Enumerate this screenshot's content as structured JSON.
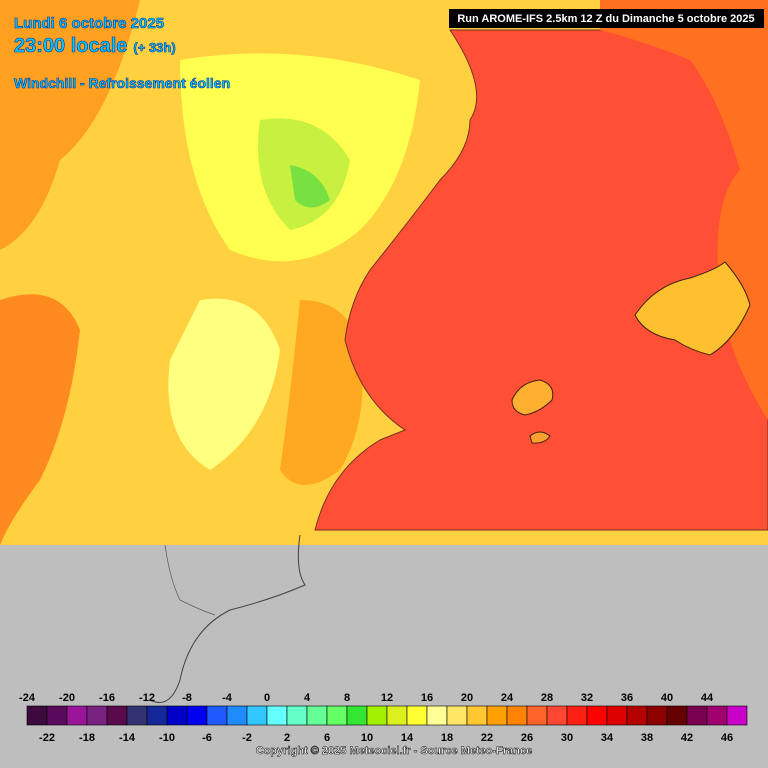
{
  "header": {
    "date": "Lundi 6 octobre 2025",
    "time": "23:00 locale",
    "offset": "(+ 33h)",
    "subtitle": "Windchill - Refroissement éolien",
    "run": "Run AROME-IFS 2.5km 12 Z du Dimanche 5 octobre 2025"
  },
  "legend": {
    "values": [
      -24,
      -22,
      -20,
      -18,
      -16,
      -14,
      -12,
      -10,
      -8,
      -6,
      -4,
      -2,
      0,
      2,
      4,
      6,
      8,
      10,
      12,
      14,
      16,
      18,
      20,
      22,
      24,
      26,
      28,
      30,
      32,
      34,
      36,
      38,
      40,
      42,
      44,
      46
    ],
    "colors": [
      "#3c0a3c",
      "#5a0a5a",
      "#9a149a",
      "#7a2282",
      "#5a0a4a",
      "#323270",
      "#14289a",
      "#0000c8",
      "#0000f0",
      "#1e5aff",
      "#1e8cff",
      "#32c8ff",
      "#64ffff",
      "#64ffc8",
      "#64ff96",
      "#64ff64",
      "#32e632",
      "#a0f000",
      "#dcf01e",
      "#ffff32",
      "#ffff96",
      "#ffe664",
      "#ffc832",
      "#ffa000",
      "#ff8200",
      "#ff6428",
      "#ff4632",
      "#ff2014",
      "#ff0000",
      "#dc0000",
      "#b40000",
      "#8c0000",
      "#640000",
      "#7a0050",
      "#a0006e",
      "#c800c8"
    ]
  },
  "copyright": "Copyright © 2025 Meteociel.fr - Source Meteo-France"
}
